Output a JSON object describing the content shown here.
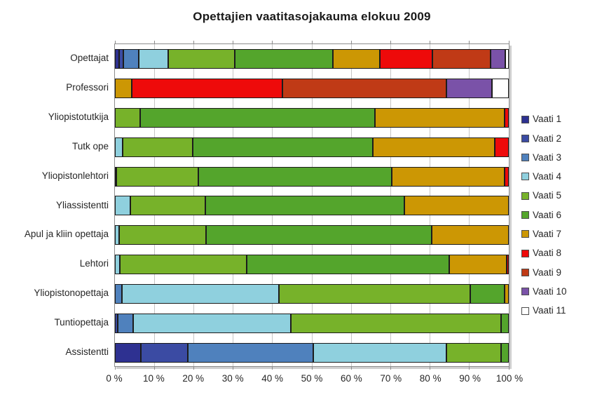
{
  "chart_data": {
    "type": "bar",
    "variant": "horizontal-stacked-100",
    "title": "Opettajien vaatitasojakauma elokuu 2009",
    "categories": [
      "Opettajat",
      "Professori",
      "Yliopistotutkija",
      "Tutk ope",
      "Yliopistonlehtori",
      "Yliassistentti",
      "Apul ja kliin opettaja",
      "Lehtori",
      "Yliopistonopettaja",
      "Tuntiopettaja",
      "Assistentti"
    ],
    "series": [
      {
        "name": "Vaati 1",
        "color": "#2E3191",
        "values": [
          1.0,
          0,
          0,
          0,
          0,
          0,
          0,
          0,
          0,
          0,
          6.6
        ]
      },
      {
        "name": "Vaati 2",
        "color": "#3B4BA3",
        "values": [
          1.2,
          0,
          0,
          0,
          0,
          0,
          0,
          0,
          0,
          0.7,
          11.9
        ]
      },
      {
        "name": "Vaati 3",
        "color": "#4F81BD",
        "values": [
          3.9,
          0,
          0,
          0,
          0,
          0,
          0,
          0,
          1.7,
          3.9,
          31.8
        ]
      },
      {
        "name": "Vaati 4",
        "color": "#8FD0DE",
        "values": [
          7.4,
          0,
          0,
          2.0,
          0.4,
          4.0,
          1.0,
          1.3,
          40.0,
          40.1,
          33.8
        ]
      },
      {
        "name": "Vaati 5",
        "color": "#77B22A",
        "values": [
          16.9,
          0,
          6.4,
          17.7,
          20.7,
          19.0,
          22.2,
          32.1,
          48.6,
          53.3,
          13.9
        ]
      },
      {
        "name": "Vaati 6",
        "color": "#54A52C",
        "values": [
          24.9,
          0,
          59.6,
          45.7,
          49.1,
          50.5,
          57.3,
          51.4,
          8.7,
          2.0,
          2.0
        ]
      },
      {
        "name": "Vaati 7",
        "color": "#CC9704",
        "values": [
          11.9,
          4.3,
          33.0,
          31.1,
          28.7,
          26.5,
          19.5,
          14.7,
          1.0,
          0,
          0
        ]
      },
      {
        "name": "Vaati 8",
        "color": "#EE0A0A",
        "values": [
          13.5,
          38.3,
          1.0,
          3.5,
          1.1,
          0,
          0,
          0.5,
          0,
          0,
          0
        ]
      },
      {
        "name": "Vaati 9",
        "color": "#C03A16",
        "values": [
          14.6,
          41.5,
          0,
          0,
          0,
          0,
          0,
          0,
          0,
          0,
          0
        ]
      },
      {
        "name": "Vaati 10",
        "color": "#7A52A8",
        "values": [
          3.9,
          11.7,
          0,
          0,
          0,
          0,
          0,
          0,
          0,
          0,
          0
        ]
      },
      {
        "name": "Vaati 11",
        "color": "#FFFFFF",
        "values": [
          0.8,
          4.2,
          0,
          0,
          0,
          0,
          0,
          0,
          0,
          0,
          0
        ]
      }
    ],
    "x_axis": {
      "min": 0,
      "max": 100,
      "step": 10,
      "tick_labels": [
        "0 %",
        "10 %",
        "20 %",
        "30 %",
        "40 %",
        "50 %",
        "60 %",
        "70 %",
        "80 %",
        "90 %",
        "100 %"
      ]
    },
    "legend": {
      "position": "right",
      "entries": [
        "Vaati 1",
        "Vaati 2",
        "Vaati 3",
        "Vaati 4",
        "Vaati 5",
        "Vaati 6",
        "Vaati 7",
        "Vaati 8",
        "Vaati 9",
        "Vaati 10",
        "Vaati 11"
      ]
    },
    "grid": true
  },
  "palette": {
    "background": "#FFFFFF",
    "gridline": "#C6C6C6",
    "plot_border": "#8C8C8C",
    "segment_border": "#1C1C1C",
    "title_color": "#1A1A1A",
    "label_color": "#262626"
  }
}
